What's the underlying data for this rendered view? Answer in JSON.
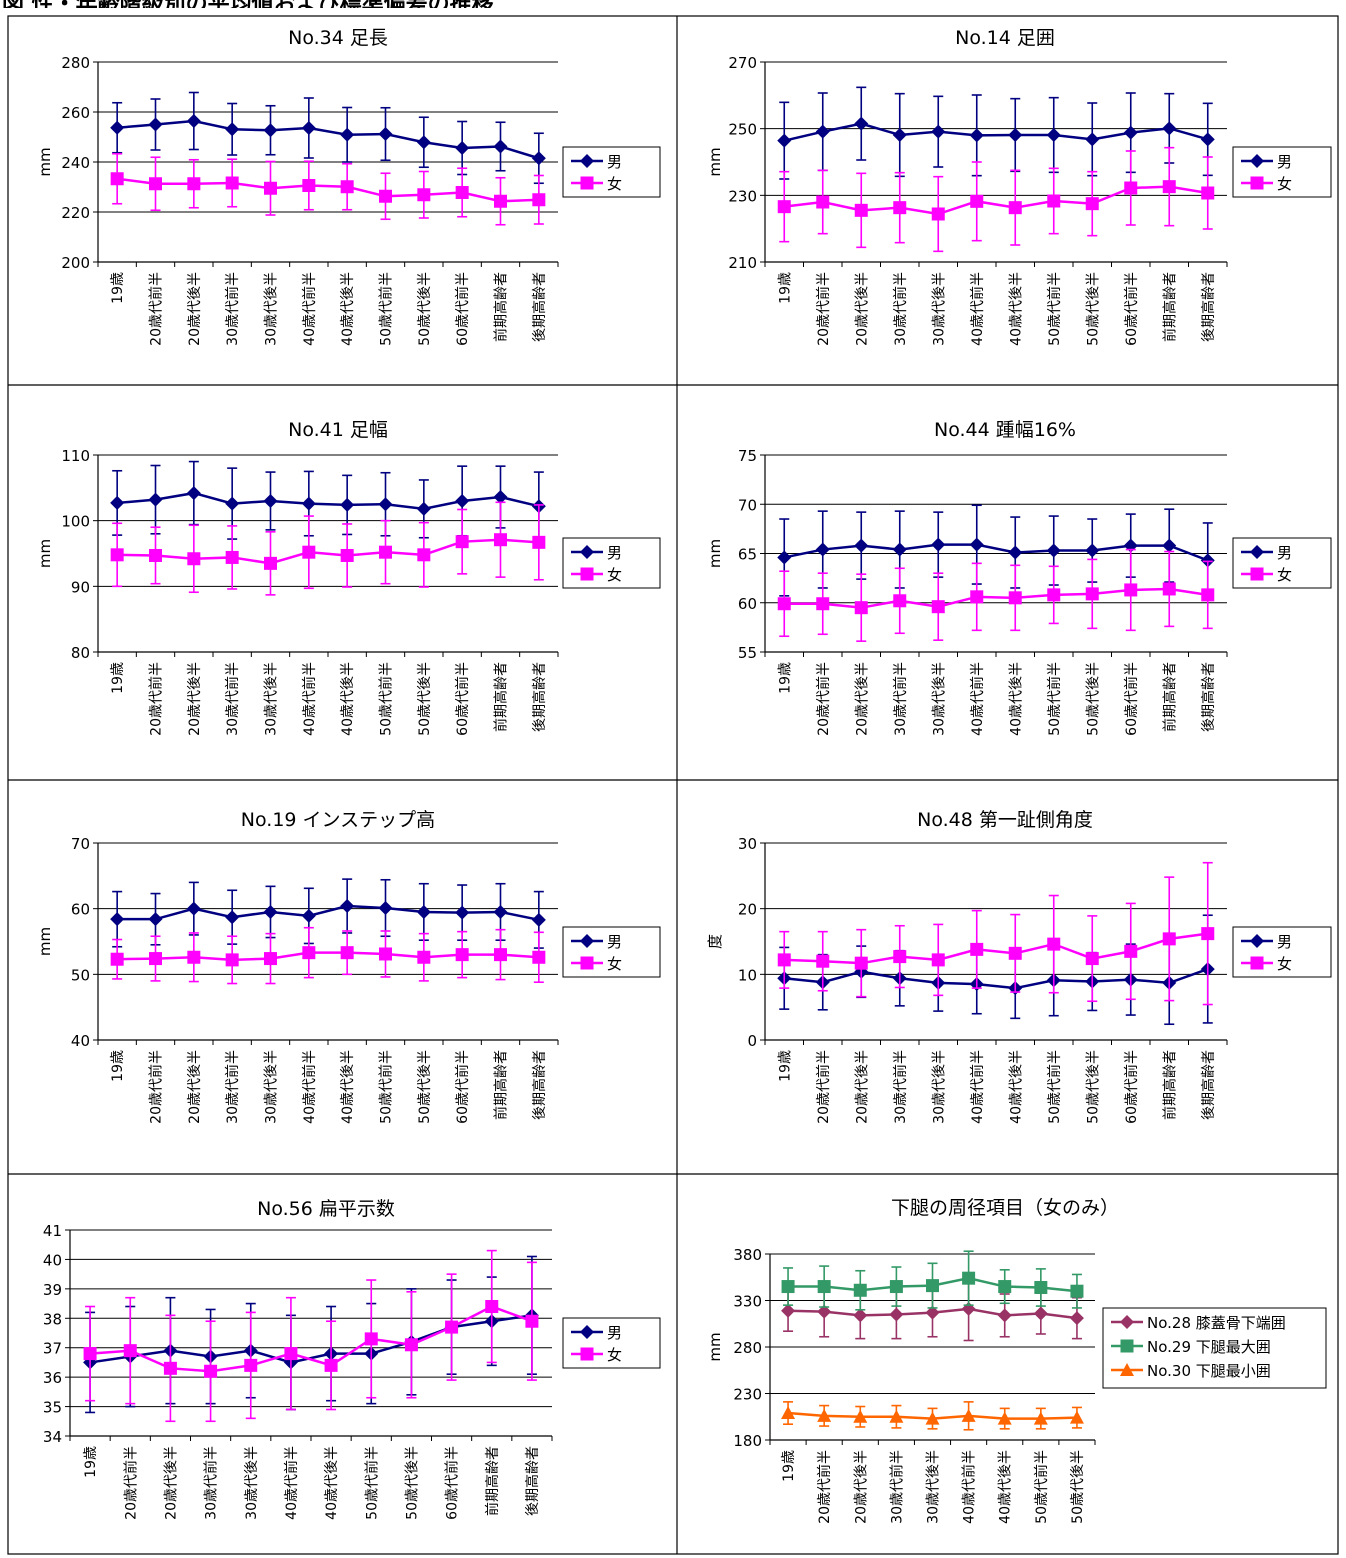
{
  "page": {
    "heading": "図 性・年齢階級別の平均値および標準偏差の推移"
  },
  "chart_data": [
    {
      "type": "line",
      "title": "No.34 足長",
      "ylabel": "mm",
      "ylim": [
        200,
        280
      ],
      "yticks": [
        200,
        220,
        240,
        260,
        280
      ],
      "categories": [
        "19歳",
        "20歳代前半",
        "20歳代後半",
        "30歳代前半",
        "30歳代後半",
        "40歳代前半",
        "40歳代後半",
        "50歳代前半",
        "50歳代後半",
        "60歳代前半",
        "前期高齢者",
        "後期高齢者"
      ],
      "series": [
        {
          "name": "男",
          "color": "#000080",
          "marker": "diamond",
          "values": [
            253.7,
            255.0,
            256.4,
            253.1,
            252.7,
            253.6,
            250.9,
            251.2,
            247.9,
            245.6,
            246.2,
            241.5
          ],
          "sd": [
            10.0,
            10.2,
            11.4,
            10.3,
            9.8,
            12.0,
            10.9,
            10.5,
            10.0,
            10.6,
            9.7,
            10.0
          ]
        },
        {
          "name": "女",
          "color": "#FF00FF",
          "marker": "square",
          "values": [
            233.3,
            231.3,
            231.3,
            231.6,
            229.5,
            230.6,
            230.1,
            226.3,
            226.9,
            227.8,
            224.3,
            224.9
          ],
          "sd": [
            10.0,
            10.6,
            9.6,
            9.5,
            10.7,
            9.7,
            9.2,
            9.2,
            9.3,
            9.7,
            9.4,
            9.7
          ]
        }
      ]
    },
    {
      "type": "line",
      "title": "No.14 足囲",
      "ylabel": "mm",
      "ylim": [
        210,
        270
      ],
      "yticks": [
        210,
        230,
        250,
        270
      ],
      "categories": [
        "19歳",
        "20歳代前半",
        "20歳代後半",
        "30歳代前半",
        "30歳代後半",
        "40歳代前半",
        "40歳代後半",
        "50歳代前半",
        "50歳代後半",
        "60歳代前半",
        "前期高齢者",
        "後期高齢者"
      ],
      "series": [
        {
          "name": "男",
          "color": "#000080",
          "marker": "diamond",
          "values": [
            246.4,
            249.1,
            251.5,
            248.1,
            249.1,
            248.0,
            248.1,
            248.1,
            246.8,
            248.8,
            250.1,
            246.8
          ],
          "sd": [
            11.5,
            11.6,
            10.9,
            12.4,
            10.6,
            12.1,
            10.9,
            11.2,
            10.9,
            11.9,
            10.4,
            10.8
          ]
        },
        {
          "name": "女",
          "color": "#FF00FF",
          "marker": "square",
          "values": [
            226.6,
            228.0,
            225.5,
            226.3,
            224.4,
            228.2,
            226.3,
            228.3,
            227.5,
            232.2,
            232.6,
            230.7
          ],
          "sd": [
            10.5,
            9.5,
            11.1,
            10.5,
            11.2,
            11.8,
            11.2,
            9.8,
            9.6,
            11.1,
            11.7,
            10.8
          ]
        }
      ]
    },
    {
      "type": "line",
      "title": "No.41 足幅",
      "ylabel": "mm",
      "ylim": [
        80,
        110
      ],
      "yticks": [
        80,
        90,
        100,
        110
      ],
      "categories": [
        "19歳",
        "20歳代前半",
        "20歳代後半",
        "30歳代前半",
        "30歳代後半",
        "40歳代前半",
        "40歳代後半",
        "50歳代前半",
        "50歳代後半",
        "60歳代前半",
        "前期高齢者",
        "後期高齢者"
      ],
      "series": [
        {
          "name": "男",
          "color": "#000080",
          "marker": "diamond",
          "values": [
            102.7,
            103.2,
            104.2,
            102.6,
            103.0,
            102.6,
            102.4,
            102.5,
            101.8,
            103.0,
            103.6,
            102.2
          ],
          "sd": [
            4.9,
            5.2,
            4.8,
            5.4,
            4.4,
            4.9,
            4.5,
            4.8,
            4.4,
            5.3,
            4.7,
            5.2
          ]
        },
        {
          "name": "女",
          "color": "#FF00FF",
          "marker": "square",
          "values": [
            94.8,
            94.7,
            94.2,
            94.4,
            93.5,
            95.2,
            94.7,
            95.2,
            94.8,
            96.8,
            97.1,
            96.7
          ],
          "sd": [
            4.8,
            4.3,
            5.1,
            4.8,
            4.8,
            5.5,
            4.8,
            4.8,
            4.9,
            4.9,
            5.7,
            5.7
          ]
        }
      ]
    },
    {
      "type": "line",
      "title": "No.44 踵幅16%",
      "ylabel": "mm",
      "ylim": [
        55,
        75
      ],
      "yticks": [
        55,
        60,
        65,
        70,
        75
      ],
      "categories": [
        "19歳",
        "20歳代前半",
        "20歳代後半",
        "30歳代前半",
        "30歳代後半",
        "40歳代前半",
        "40歳代後半",
        "50歳代前半",
        "50歳代後半",
        "60歳代前半",
        "前期高齢者",
        "後期高齢者"
      ],
      "series": [
        {
          "name": "男",
          "color": "#000080",
          "marker": "diamond",
          "values": [
            64.6,
            65.4,
            65.8,
            65.4,
            65.9,
            65.9,
            65.1,
            65.3,
            65.3,
            65.8,
            65.8,
            64.3
          ],
          "sd": [
            3.9,
            3.9,
            3.4,
            3.9,
            3.3,
            4.0,
            3.6,
            3.5,
            3.2,
            3.2,
            3.7,
            3.8
          ]
        },
        {
          "name": "女",
          "color": "#FF00FF",
          "marker": "square",
          "values": [
            59.9,
            59.9,
            59.5,
            60.2,
            59.6,
            60.6,
            60.5,
            60.8,
            60.9,
            61.3,
            61.4,
            60.8
          ],
          "sd": [
            3.3,
            3.1,
            3.4,
            3.3,
            3.4,
            3.4,
            3.3,
            2.9,
            3.5,
            4.1,
            3.8,
            3.4
          ]
        }
      ]
    },
    {
      "type": "line",
      "title": "No.19 インステップ高",
      "ylabel": "mm",
      "ylim": [
        40,
        70
      ],
      "yticks": [
        40,
        50,
        60,
        70
      ],
      "categories": [
        "19歳",
        "20歳代前半",
        "20歳代後半",
        "30歳代前半",
        "30歳代後半",
        "40歳代前半",
        "40歳代後半",
        "50歳代前半",
        "50歳代後半",
        "60歳代前半",
        "前期高齢者",
        "後期高齢者"
      ],
      "series": [
        {
          "name": "男",
          "color": "#000080",
          "marker": "diamond",
          "values": [
            58.4,
            58.4,
            60.0,
            58.7,
            59.5,
            58.9,
            60.4,
            60.1,
            59.5,
            59.4,
            59.5,
            58.3
          ],
          "sd": [
            4.2,
            3.9,
            4.0,
            4.1,
            3.9,
            4.2,
            4.1,
            4.3,
            4.3,
            4.2,
            4.3,
            4.3
          ]
        },
        {
          "name": "女",
          "color": "#FF00FF",
          "marker": "square",
          "values": [
            52.3,
            52.4,
            52.6,
            52.2,
            52.4,
            53.3,
            53.3,
            53.1,
            52.6,
            53.0,
            53.0,
            52.6
          ],
          "sd": [
            3.0,
            3.4,
            3.7,
            3.6,
            3.8,
            3.8,
            3.3,
            3.5,
            3.6,
            3.5,
            3.8,
            3.8
          ]
        }
      ]
    },
    {
      "type": "line",
      "title": "No.48 第一趾側角度",
      "ylabel": "度",
      "ylim": [
        0,
        30
      ],
      "yticks": [
        0,
        10,
        20,
        30
      ],
      "categories": [
        "19歳",
        "20歳代前半",
        "20歳代後半",
        "30歳代前半",
        "30歳代後半",
        "40歳代前半",
        "40歳代後半",
        "50歳代前半",
        "50歳代後半",
        "60歳代前半",
        "前期高齢者",
        "後期高齢者"
      ],
      "series": [
        {
          "name": "男",
          "color": "#000080",
          "marker": "diamond",
          "values": [
            9.4,
            8.8,
            10.4,
            9.4,
            8.7,
            8.5,
            7.9,
            9.1,
            8.9,
            9.2,
            8.7,
            10.8
          ],
          "sd": [
            4.7,
            4.2,
            3.9,
            4.2,
            4.3,
            4.5,
            4.6,
            5.4,
            4.4,
            5.4,
            6.3,
            8.2
          ]
        },
        {
          "name": "女",
          "color": "#FF00FF",
          "marker": "square",
          "values": [
            12.2,
            12.0,
            11.7,
            12.7,
            12.2,
            13.8,
            13.2,
            14.6,
            12.4,
            13.5,
            15.4,
            16.2
          ],
          "sd": [
            4.3,
            4.5,
            5.1,
            4.7,
            5.4,
            5.9,
            5.9,
            7.4,
            6.5,
            7.3,
            9.4,
            10.8
          ]
        }
      ]
    },
    {
      "type": "line",
      "title": "No.56 扁平示数",
      "ylabel": "",
      "ylim": [
        34,
        41
      ],
      "yticks": [
        34,
        35,
        36,
        37,
        38,
        39,
        40,
        41
      ],
      "categories": [
        "19歳",
        "20歳代前半",
        "20歳代後半",
        "30歳代前半",
        "30歳代後半",
        "40歳代前半",
        "40歳代後半",
        "50歳代前半",
        "50歳代後半",
        "60歳代前半",
        "前期高齢者",
        "後期高齢者"
      ],
      "series": [
        {
          "name": "男",
          "color": "#000080",
          "marker": "diamond",
          "values": [
            36.5,
            36.7,
            36.9,
            36.7,
            36.9,
            36.5,
            36.8,
            36.8,
            37.2,
            37.7,
            37.9,
            38.1
          ],
          "sd": [
            1.7,
            1.7,
            1.8,
            1.6,
            1.6,
            1.6,
            1.6,
            1.7,
            1.8,
            1.6,
            1.5,
            2.0
          ]
        },
        {
          "name": "女",
          "color": "#FF00FF",
          "marker": "square",
          "values": [
            36.8,
            36.9,
            36.3,
            36.2,
            36.4,
            36.8,
            36.4,
            37.3,
            37.1,
            37.7,
            38.4,
            37.9
          ],
          "sd": [
            1.6,
            1.8,
            1.8,
            1.7,
            1.8,
            1.9,
            1.5,
            2.0,
            1.8,
            1.8,
            1.9,
            2.0
          ]
        }
      ]
    },
    {
      "type": "line",
      "title": "下腿の周径項目（女のみ）",
      "ylabel": "mm",
      "ylim": [
        180,
        380
      ],
      "yticks": [
        180,
        230,
        280,
        330,
        380
      ],
      "ytick_max": 380,
      "categories": [
        "19歳",
        "20歳代前半",
        "20歳代後半",
        "30歳代前半",
        "30歳代後半",
        "40歳代前半",
        "40歳代後半",
        "50歳代前半",
        "50歳代後半"
      ],
      "series": [
        {
          "name": "No.28 膝蓋骨下端囲",
          "color": "#993366",
          "marker": "diamond",
          "values": [
            319,
            318,
            314,
            315,
            317,
            321,
            314,
            316,
            311
          ],
          "sd": [
            22,
            27,
            25,
            26,
            26,
            34,
            23,
            22,
            22
          ]
        },
        {
          "name": "No.29 下腿最大囲",
          "color": "#339966",
          "marker": "square",
          "values": [
            345,
            345,
            341,
            345,
            346,
            354,
            345,
            344,
            340
          ],
          "sd": [
            20,
            22,
            21,
            21,
            24,
            29,
            18,
            20,
            18
          ]
        },
        {
          "name": "No.30 下腿最小囲",
          "color": "#FF6600",
          "marker": "triangle",
          "values": [
            209,
            206,
            205,
            205,
            203,
            206,
            203,
            203,
            204
          ],
          "sd": [
            12,
            11,
            11,
            12,
            11,
            15,
            11,
            11,
            11
          ]
        }
      ]
    }
  ]
}
